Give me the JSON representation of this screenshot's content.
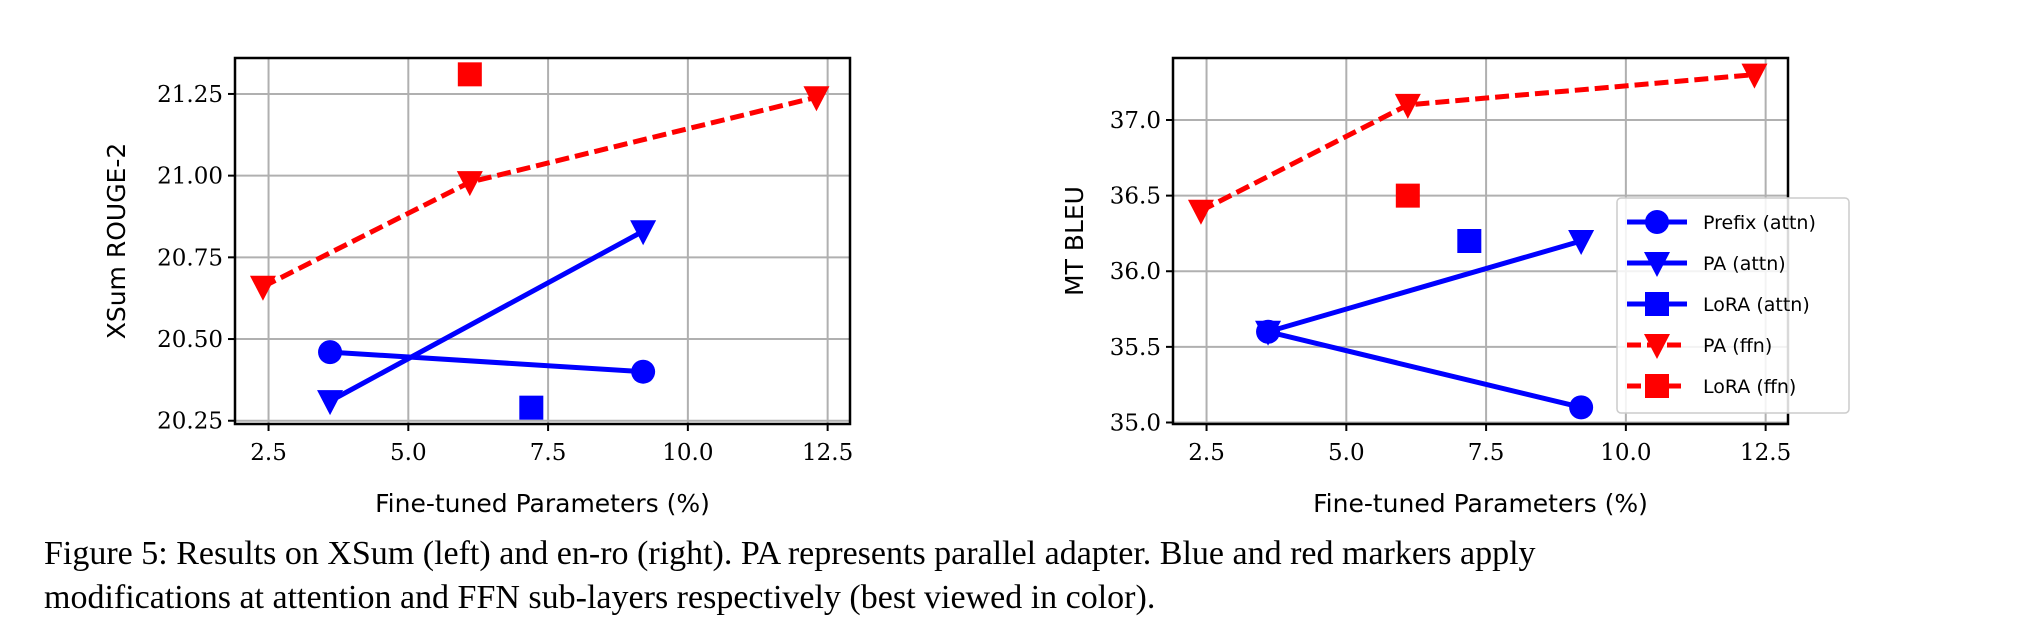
{
  "chart_data": [
    {
      "type": "line",
      "title": "",
      "xlabel": "Fine-tuned Parameters (%)",
      "ylabel": "XSum ROUGE-2",
      "xlim": [
        1.9,
        12.9
      ],
      "ylim": [
        20.24,
        21.36
      ],
      "xticks": [
        "2.5",
        "5.0",
        "7.5",
        "10.0",
        "12.5"
      ],
      "xtick_values": [
        2.5,
        5.0,
        7.5,
        10.0,
        12.5
      ],
      "yticks": [
        "20.25",
        "20.50",
        "20.75",
        "21.00",
        "21.25"
      ],
      "ytick_values": [
        20.25,
        20.5,
        20.75,
        21.0,
        21.25
      ],
      "grid": true,
      "series": [
        {
          "name": "Prefix (attn)",
          "color": "#0000ff",
          "marker": "circle",
          "dash": false,
          "x": [
            3.6,
            9.2
          ],
          "y": [
            20.46,
            20.4
          ]
        },
        {
          "name": "PA (attn)",
          "color": "#0000ff",
          "marker": "triangle-down",
          "dash": false,
          "x": [
            3.6,
            9.2
          ],
          "y": [
            20.31,
            20.83
          ]
        },
        {
          "name": "LoRA (attn)",
          "color": "#0000ff",
          "marker": "square",
          "dash": false,
          "x": [
            7.2
          ],
          "y": [
            20.29
          ]
        },
        {
          "name": "PA (ffn)",
          "color": "#ff0000",
          "marker": "triangle-down",
          "dash": true,
          "x": [
            2.4,
            6.1,
            12.3
          ],
          "y": [
            20.66,
            20.98,
            21.24
          ]
        },
        {
          "name": "LoRA (ffn)",
          "color": "#ff0000",
          "marker": "square",
          "dash": true,
          "x": [
            6.1
          ],
          "y": [
            21.31
          ]
        }
      ]
    },
    {
      "type": "line",
      "title": "",
      "xlabel": "Fine-tuned Parameters (%)",
      "ylabel": "MT BLEU",
      "xlim": [
        1.9,
        12.9
      ],
      "ylim": [
        34.99,
        37.41
      ],
      "xticks": [
        "2.5",
        "5.0",
        "7.5",
        "10.0",
        "12.5"
      ],
      "xtick_values": [
        2.5,
        5.0,
        7.5,
        10.0,
        12.5
      ],
      "yticks": [
        "35.0",
        "35.5",
        "36.0",
        "36.5",
        "37.0"
      ],
      "ytick_values": [
        35.0,
        35.5,
        36.0,
        36.5,
        37.0
      ],
      "grid": true,
      "legend": "center-right",
      "series": [
        {
          "name": "Prefix (attn)",
          "color": "#0000ff",
          "marker": "circle",
          "dash": false,
          "x": [
            3.6,
            9.2
          ],
          "y": [
            35.6,
            35.1
          ]
        },
        {
          "name": "PA (attn)",
          "color": "#0000ff",
          "marker": "triangle-down",
          "dash": false,
          "x": [
            3.6,
            9.2
          ],
          "y": [
            35.6,
            36.2
          ]
        },
        {
          "name": "LoRA (attn)",
          "color": "#0000ff",
          "marker": "square",
          "dash": false,
          "x": [
            7.2
          ],
          "y": [
            36.2
          ]
        },
        {
          "name": "PA (ffn)",
          "color": "#ff0000",
          "marker": "triangle-down",
          "dash": true,
          "x": [
            2.4,
            6.1,
            12.3
          ],
          "y": [
            36.4,
            37.1,
            37.3
          ]
        },
        {
          "name": "LoRA (ffn)",
          "color": "#ff0000",
          "marker": "square",
          "dash": true,
          "x": [
            6.1
          ],
          "y": [
            36.5
          ]
        }
      ]
    }
  ],
  "caption": {
    "line1": "Figure 5: Results on XSum (left) and en-ro (right). PA represents parallel adapter. Blue and red markers apply",
    "line2": "modifications at attention and FFN sub-layers respectively (best viewed in color)."
  }
}
